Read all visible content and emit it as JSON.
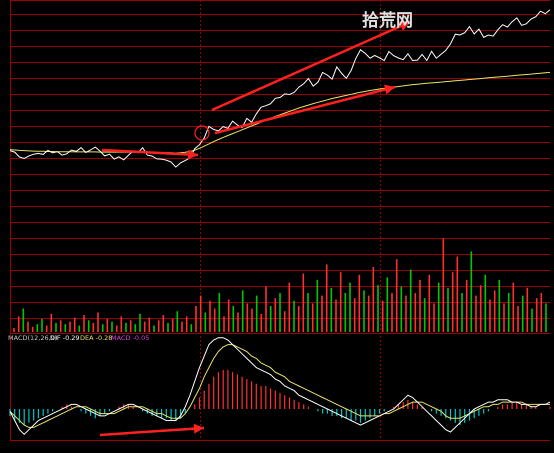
{
  "watermark": "拾荒网",
  "colors": {
    "background": "#000000",
    "grid": "#9b0000",
    "price_line": "#ffffff",
    "avg_line": "#e7e36a",
    "volume_up": "#ff3030",
    "volume_down": "#00c800",
    "macd_pos": "#ff3030",
    "macd_neg": "#00c8c8",
    "dif_line": "#ffffff",
    "dea_line": "#e7e36a",
    "arrow": "#ff2020",
    "label": "#cc2020"
  },
  "macd_legend": {
    "params": "MACD(12,26,9)",
    "dif": "DIF -0.29",
    "dea": "DEA -0.28",
    "macd": "MACD -0.05"
  },
  "chart_data": [
    {
      "type": "line",
      "panel": "intraday-price",
      "title": "",
      "series": [
        {
          "values": [
            30.5,
            29.8,
            27.5,
            26.8,
            28.0,
            28.8,
            29.2,
            28.7,
            30.6,
            29.5,
            30.0,
            28.4,
            29.0,
            30.8,
            30.2,
            31.9,
            29.6,
            30.8,
            32.2,
            30.3,
            28.0,
            28.8,
            26.5,
            27.6,
            26.1,
            28.3,
            30.4,
            29.5,
            31.9,
            28.4,
            27.9,
            26.6,
            26.5,
            26.0,
            25.1,
            22.7,
            24.7,
            25.9,
            27.0,
            31.4,
            33.3,
            36.5,
            42.0,
            40.5,
            39.9,
            41.9,
            41.1,
            44.5,
            42.6,
            41.4,
            45.8,
            44.0,
            47.9,
            51.1,
            51.8,
            52.7,
            55.3,
            55.7,
            57.4,
            57.1,
            58.1,
            60.6,
            62.2,
            64.7,
            61.1,
            62.9,
            67.6,
            66.3,
            64.4,
            70.2,
            67.1,
            64.8,
            68.5,
            74.2,
            78.3,
            76.6,
            74.3,
            75.6,
            74.5,
            73.2,
            77.5,
            75.5,
            74.4,
            73.6,
            76.4,
            73.2,
            73.4,
            76.1,
            73.2,
            77.6,
            74.3,
            76.2,
            78.0,
            81.1,
            85.7,
            85.3,
            86.4,
            89.3,
            85.8,
            88.1,
            84.2,
            85.3,
            84.8,
            87.8,
            90.2,
            89.1,
            91.6,
            93.4,
            89.9,
            90.6,
            92.9,
            94.0,
            96.6,
            95.4,
            97.3
          ]
        },
        {
          "values": [
            31.0,
            30.8,
            30.6,
            30.5,
            30.4,
            30.3,
            30.2,
            30.2,
            30.1,
            30.1,
            30.0,
            30.0,
            30.0,
            30.0,
            29.9,
            29.9,
            29.9,
            29.9,
            29.9,
            29.8,
            29.8,
            29.8,
            29.8,
            29.8,
            29.7,
            29.7,
            29.7,
            29.7,
            29.7,
            29.6,
            29.6,
            29.6,
            29.5,
            29.5,
            29.5,
            29.4,
            29.5,
            29.7,
            30.1,
            30.7,
            31.6,
            32.6,
            33.7,
            34.8,
            35.8,
            36.8,
            37.7,
            38.6,
            39.5,
            40.4,
            41.3,
            42.2,
            43.1,
            44.0,
            44.9,
            45.8,
            46.7,
            47.5,
            48.3,
            49.1,
            49.9,
            50.7,
            51.4,
            52.1,
            52.8,
            53.4,
            54.0,
            54.6,
            55.2,
            55.7,
            56.2,
            56.7,
            57.2,
            57.7,
            58.2,
            58.6,
            59.0,
            59.4,
            59.7,
            60.0,
            60.3,
            60.6,
            60.9,
            61.2,
            61.5,
            61.8,
            62.0,
            62.2,
            62.4,
            62.6,
            62.8,
            63.0,
            63.2,
            63.4,
            63.6,
            63.8,
            64.0,
            64.2,
            64.4,
            64.6,
            64.8,
            65.0,
            65.2,
            65.4,
            65.6,
            65.8,
            66.0,
            66.2,
            66.4,
            66.6,
            66.8,
            67.0,
            67.2,
            67.4,
            67.6
          ]
        }
      ]
    },
    {
      "type": "bar",
      "panel": "volume",
      "values": [
        3,
        12,
        18,
        8,
        4,
        6,
        10,
        5,
        14,
        7,
        9,
        6,
        8,
        11,
        5,
        13,
        9,
        7,
        15,
        6,
        10,
        8,
        5,
        12,
        7,
        9,
        6,
        14,
        8,
        11,
        5,
        9,
        13,
        7,
        10,
        16,
        8,
        12,
        6,
        20,
        28,
        15,
        24,
        18,
        30,
        12,
        25,
        20,
        15,
        32,
        22,
        18,
        28,
        14,
        35,
        20,
        26,
        30,
        16,
        38,
        24,
        20,
        45,
        30,
        22,
        40,
        28,
        52,
        34,
        25,
        46,
        30,
        38,
        26,
        44,
        32,
        28,
        50,
        36,
        24,
        42,
        30,
        56,
        35,
        28,
        48,
        30,
        40,
        26,
        44,
        22,
        38,
        72,
        34,
        46,
        58,
        30,
        40,
        62,
        28,
        36,
        44,
        25,
        32,
        40,
        22,
        30,
        38,
        20,
        28,
        34,
        18,
        26,
        30,
        22
      ],
      "up": [
        1,
        1,
        0,
        1,
        1,
        0,
        0,
        1,
        1,
        0,
        1,
        0,
        1,
        1,
        0,
        1,
        0,
        1,
        1,
        0,
        1,
        0,
        1,
        1,
        0,
        1,
        0,
        0,
        1,
        1,
        0,
        1,
        1,
        0,
        1,
        0,
        1,
        1,
        0,
        1,
        1,
        0,
        1,
        1,
        0,
        1,
        1,
        0,
        1,
        0,
        1,
        1,
        0,
        1,
        1,
        0,
        1,
        0,
        1,
        1,
        0,
        1,
        1,
        0,
        1,
        0,
        1,
        1,
        0,
        1,
        1,
        0,
        0,
        1,
        1,
        0,
        1,
        1,
        0,
        1,
        0,
        1,
        1,
        0,
        1,
        0,
        1,
        1,
        0,
        1,
        1,
        0,
        1,
        0,
        1,
        1,
        0,
        1,
        0,
        1,
        1,
        0,
        1,
        1,
        0,
        1,
        0,
        1,
        1,
        0,
        1,
        0,
        1,
        1,
        0
      ]
    },
    {
      "type": "bar",
      "panel": "macd",
      "series": [
        {
          "values": [
            -3,
            -5,
            -6,
            -7,
            -6,
            -5,
            -4,
            -3,
            -2,
            -1,
            0,
            1,
            2,
            1,
            0,
            -1,
            -2,
            -3,
            -4,
            -3,
            -2,
            -1,
            0,
            1,
            2,
            2,
            1,
            0,
            -1,
            -2,
            -3,
            -3,
            -4,
            -4,
            -5,
            -5,
            -4,
            -2,
            0,
            2,
            5,
            8,
            11,
            14,
            16,
            17,
            17,
            16,
            15,
            14,
            13,
            12,
            11,
            10,
            10,
            9,
            8,
            7,
            6,
            5,
            4,
            3,
            2,
            1,
            0,
            -1,
            -2,
            -2,
            -3,
            -3,
            -4,
            -4,
            -5,
            -5,
            -6,
            -5,
            -4,
            -3,
            -2,
            -1,
            0,
            1,
            2,
            3,
            4,
            3,
            2,
            1,
            0,
            -1,
            -2,
            -3,
            -4,
            -5,
            -6,
            -7,
            -6,
            -5,
            -4,
            -3,
            -2,
            -1,
            0,
            1,
            2,
            2,
            3,
            3,
            2,
            2,
            1,
            1,
            0,
            0,
            1
          ]
        },
        {
          "values": [
            -1,
            -5,
            -9,
            -11,
            -9,
            -7,
            -5,
            -4,
            -3,
            -2,
            -1,
            0,
            1,
            2,
            2,
            1,
            0,
            -1,
            -2,
            -3,
            -3,
            -2,
            -1,
            0,
            1,
            2,
            2,
            1,
            0,
            -1,
            -2,
            -3,
            -4,
            -5,
            -5,
            -5,
            -3,
            1,
            6,
            12,
            18,
            23,
            28,
            30,
            31,
            31,
            30,
            28,
            26,
            24,
            22,
            20,
            18,
            17,
            16,
            15,
            13,
            12,
            10,
            9,
            8,
            6,
            5,
            4,
            3,
            2,
            1,
            0,
            -1,
            -2,
            -3,
            -4,
            -5,
            -6,
            -7,
            -6,
            -5,
            -4,
            -3,
            -2,
            -1,
            0,
            2,
            4,
            6,
            5,
            3,
            1,
            -1,
            -3,
            -5,
            -7,
            -9,
            -10,
            -8,
            -6,
            -4,
            -2,
            0,
            1,
            2,
            3,
            3,
            4,
            4,
            4,
            3,
            3,
            2,
            2,
            1,
            1,
            2,
            2,
            3
          ]
        },
        {
          "values": [
            -1,
            -3,
            -5,
            -7,
            -8,
            -8,
            -7,
            -6,
            -5,
            -4,
            -3,
            -2,
            -1,
            0,
            1,
            1,
            1,
            0,
            -1,
            -2,
            -2,
            -2,
            -2,
            -1,
            0,
            1,
            1,
            1,
            1,
            0,
            -1,
            -2,
            -2,
            -3,
            -4,
            -4,
            -4,
            -2,
            1,
            5,
            9,
            14,
            18,
            22,
            25,
            27,
            28,
            28,
            27,
            26,
            25,
            23,
            22,
            20,
            19,
            18,
            16,
            15,
            14,
            12,
            11,
            10,
            9,
            8,
            7,
            6,
            5,
            4,
            3,
            2,
            1,
            0,
            -1,
            -2,
            -3,
            -3,
            -3,
            -3,
            -3,
            -2,
            -2,
            -1,
            0,
            1,
            2,
            3,
            3,
            3,
            2,
            1,
            0,
            -1,
            -3,
            -4,
            -4,
            -4,
            -3,
            -2,
            -1,
            0,
            1,
            1,
            2,
            2,
            3,
            3,
            3,
            3,
            3,
            2,
            2,
            2,
            2,
            2,
            2
          ]
        }
      ]
    }
  ]
}
